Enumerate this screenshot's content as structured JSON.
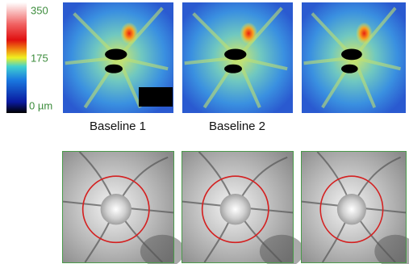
{
  "colorbar": {
    "labels": [
      "350",
      "175",
      "0 µm"
    ]
  },
  "thickness_maps": {
    "captions": [
      "Baseline 1",
      "Baseline 2"
    ]
  }
}
